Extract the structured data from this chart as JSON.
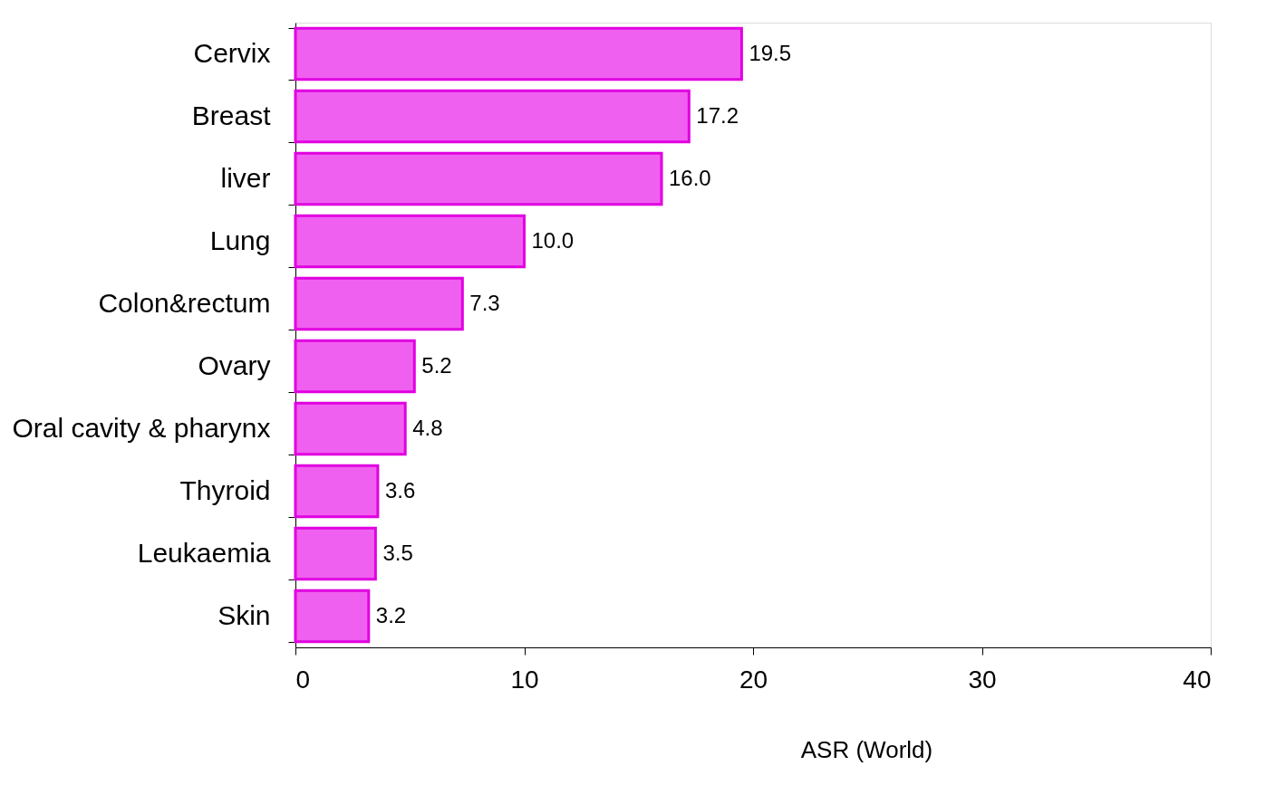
{
  "chart_data": {
    "type": "bar",
    "orientation": "horizontal",
    "xlabel": "ASR (World)",
    "categories": [
      "Cervix",
      "Breast",
      "liver",
      "Lung",
      "Colon&rectum",
      "Ovary",
      "Oral cavity & pharynx",
      "Thyroid",
      "Leukaemia",
      "Skin"
    ],
    "values": [
      19.5,
      17.2,
      16.0,
      10.0,
      7.3,
      5.2,
      4.8,
      3.6,
      3.5,
      3.2
    ],
    "value_labels": [
      "19.5",
      "17.2",
      "16.0",
      "10.0",
      "7.3",
      "5.2",
      "4.8",
      "3.6",
      "3.5",
      "3.2"
    ],
    "color": "#f060f0",
    "xlim": [
      0,
      40
    ],
    "xticks": [
      0,
      10,
      20,
      30,
      40
    ],
    "grid": false
  }
}
